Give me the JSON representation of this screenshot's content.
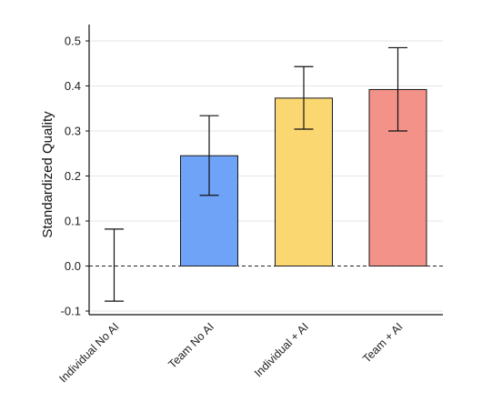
{
  "chart_data": {
    "type": "bar",
    "title": "",
    "xlabel": "",
    "ylabel": "Standardized Quality",
    "categories": [
      "Individual No AI",
      "Team No AI",
      "Individual + AI",
      "Team + AI"
    ],
    "values": [
      0.0,
      0.245,
      0.373,
      0.392
    ],
    "error_low": [
      -0.078,
      0.157,
      0.304,
      0.3
    ],
    "error_high": [
      0.082,
      0.334,
      0.443,
      0.485
    ],
    "colors": [
      "#ffffff",
      "#6fa3f7",
      "#fbd772",
      "#f29288"
    ],
    "ylim": [
      -0.1,
      0.5
    ],
    "yticks": [
      "-0.1",
      "0.0",
      "0.1",
      "0.2",
      "0.3",
      "0.4",
      "0.5"
    ],
    "ytick_values": [
      -0.1,
      0.0,
      0.1,
      0.2,
      0.3,
      0.4,
      0.5
    ],
    "grid": true,
    "reference_line": {
      "y": 0.0,
      "style": "dashed"
    }
  }
}
